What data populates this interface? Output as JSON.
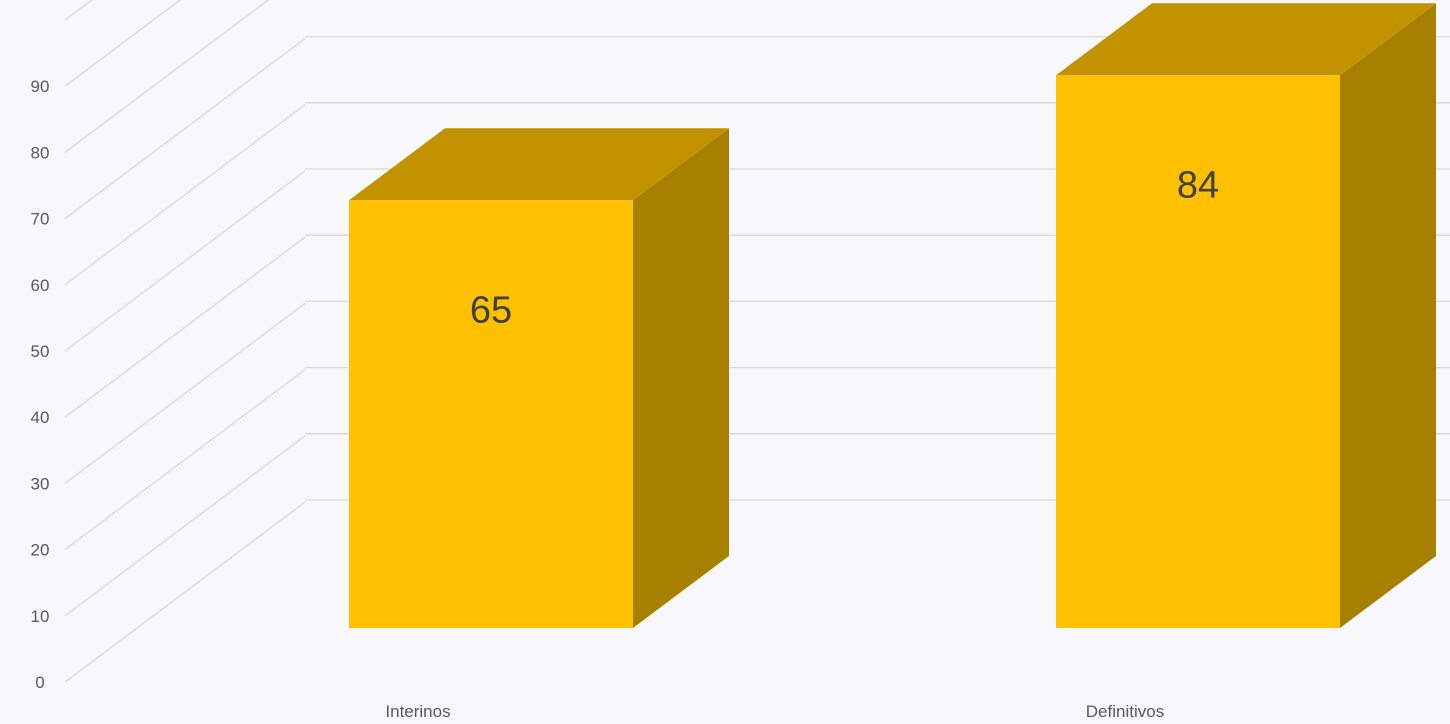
{
  "chart_data": {
    "type": "bar",
    "categories": [
      "Interinos",
      "Definitivos"
    ],
    "values": [
      65,
      84
    ],
    "title": "",
    "xlabel": "",
    "ylabel": "",
    "ylim": [
      0,
      90
    ],
    "y_ticks": [
      "0",
      "10",
      "20",
      "30",
      "40",
      "50",
      "60",
      "70",
      "80",
      "90"
    ],
    "data_labels": [
      "65",
      "84"
    ],
    "grid": true,
    "legend": "none",
    "style": "3d-column"
  },
  "colors": {
    "bar_front": "#ffc000",
    "bar_top": "#c29200",
    "bar_side": "#a88000",
    "gridline": "#d9d9d9",
    "background": "#f8f8fc"
  }
}
